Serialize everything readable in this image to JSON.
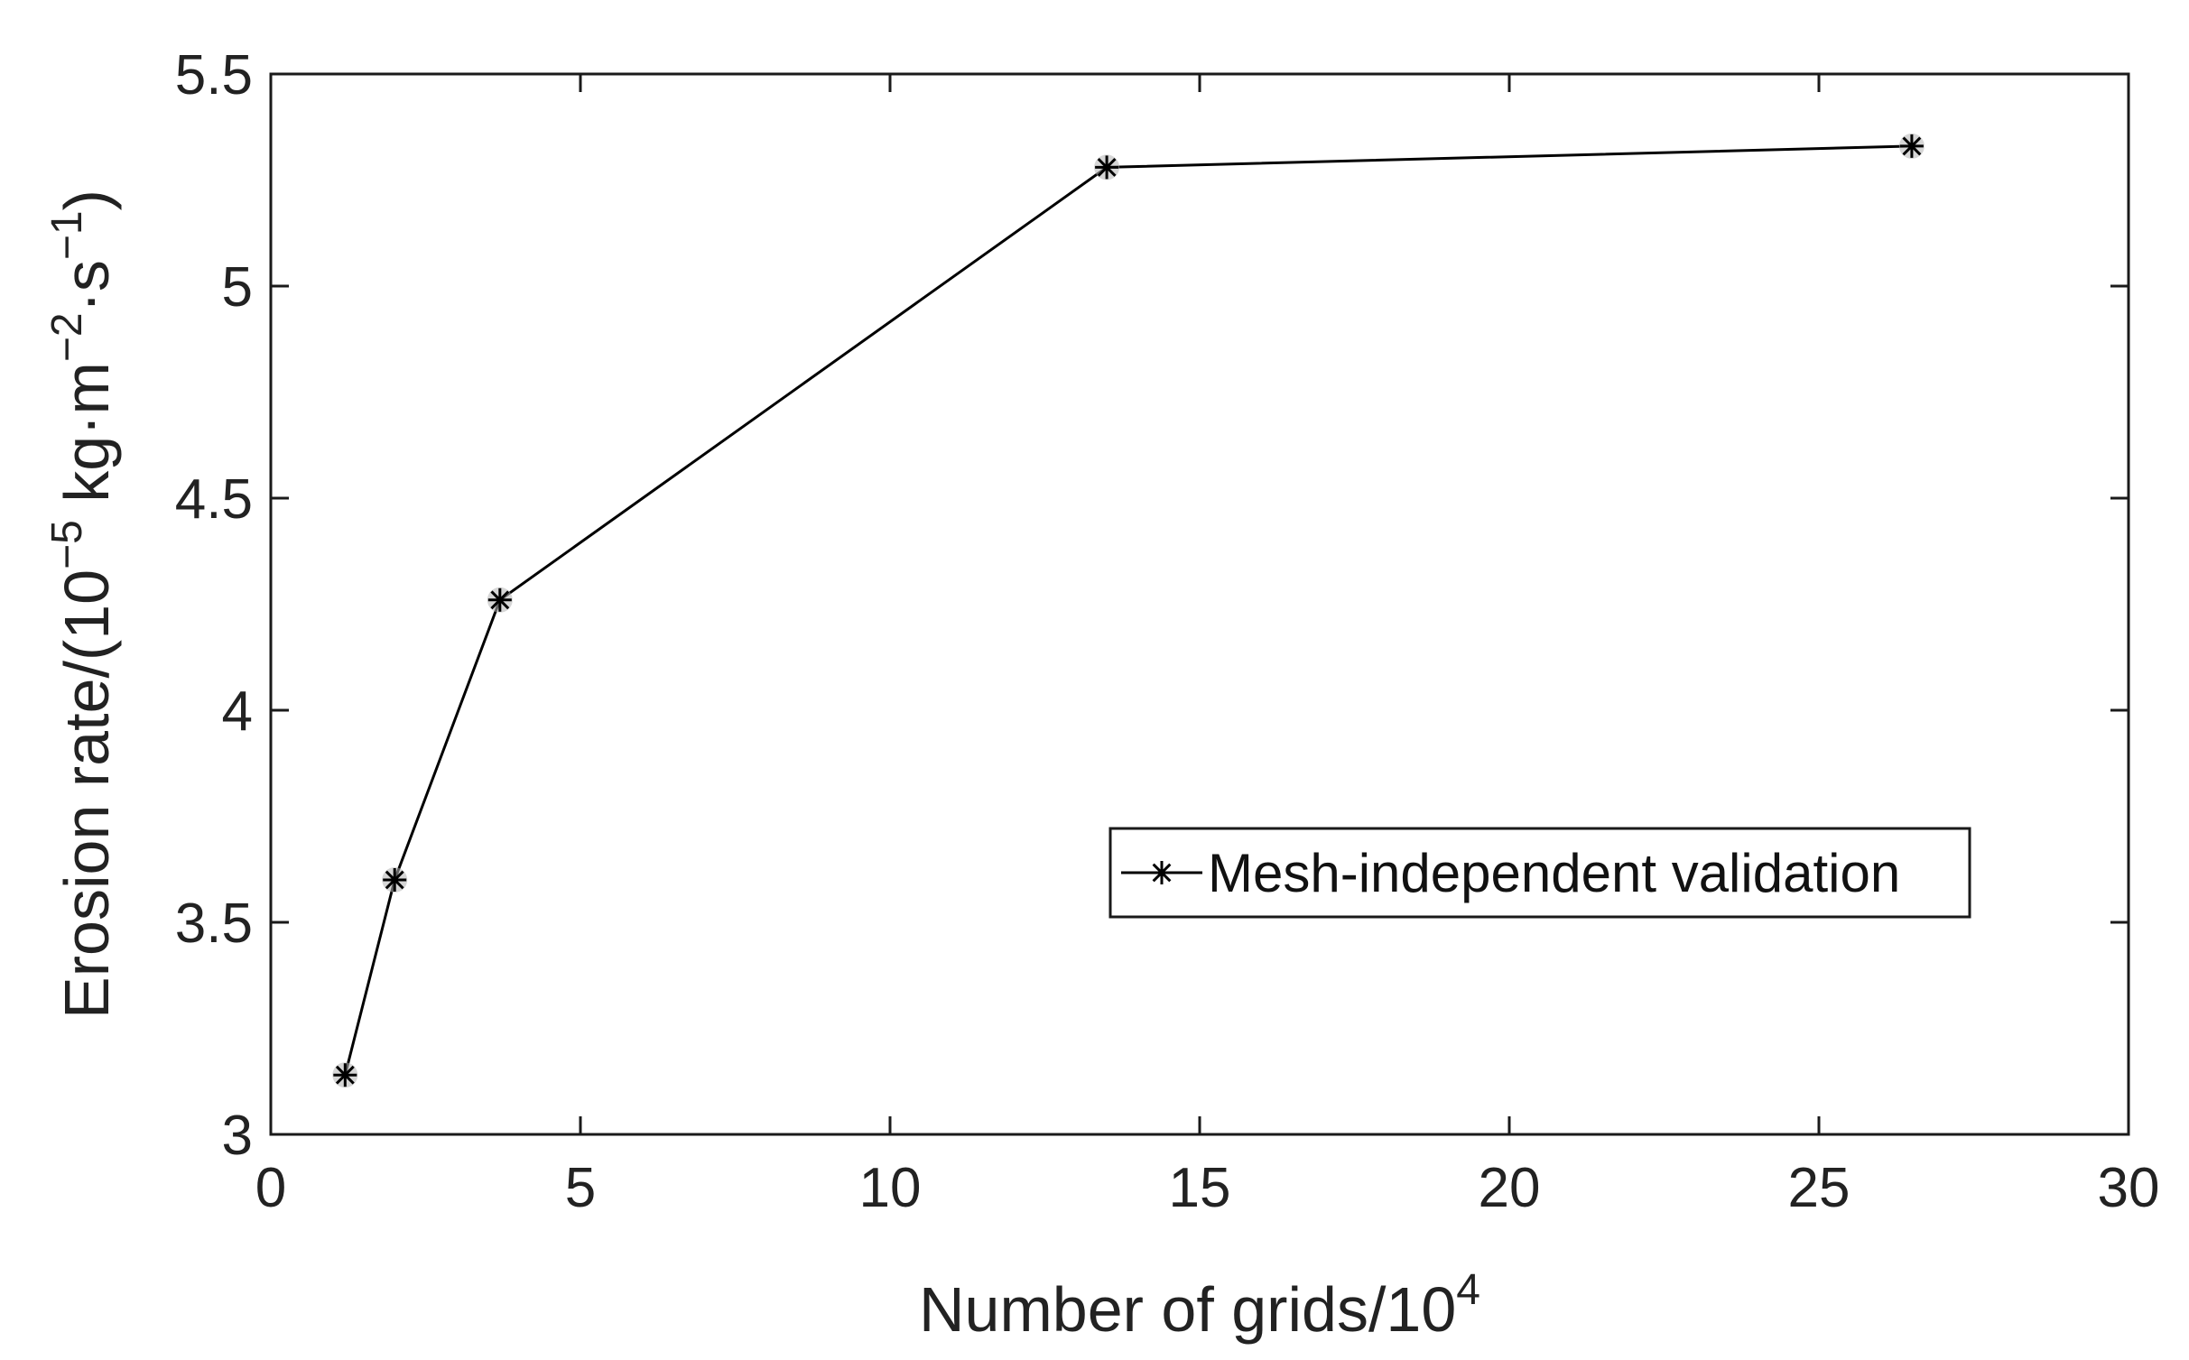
{
  "chart_data": {
    "type": "line",
    "title": "",
    "xlabel": {
      "text": "Number of grids/10",
      "sup": "4"
    },
    "ylabel": {
      "parts": [
        "Erosion rate/(10",
        "−5",
        " kg·m",
        "−2",
        "·s",
        "−1",
        ")"
      ]
    },
    "xlim": [
      0,
      30
    ],
    "ylim": [
      3,
      5.5
    ],
    "xticks": [
      "0",
      "5",
      "10",
      "15",
      "20",
      "25",
      "30"
    ],
    "yticks": [
      "3",
      "3.5",
      "4",
      "4.5",
      "5",
      "5.5"
    ],
    "grid": false,
    "legend_position": "center-right",
    "series": [
      {
        "name": "Mesh-independent validation",
        "marker": "asterisk",
        "color": "#000000",
        "x": [
          1.2,
          2.0,
          3.7,
          13.5,
          26.5
        ],
        "y": [
          3.14,
          3.6,
          4.26,
          5.28,
          5.33
        ]
      }
    ]
  }
}
